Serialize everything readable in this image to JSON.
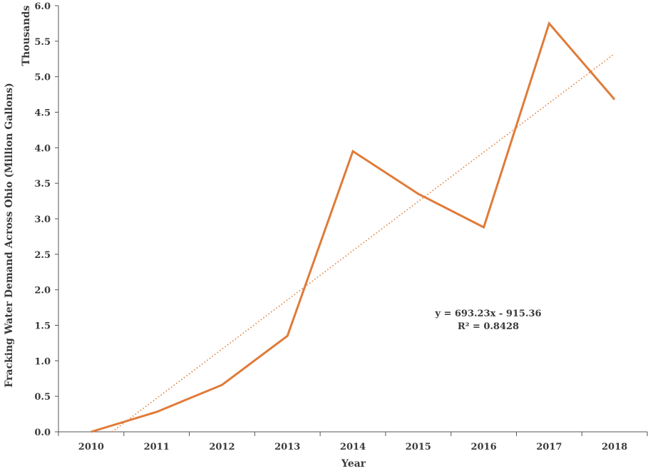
{
  "chart_data": {
    "type": "line",
    "title": "",
    "xlabel": "Year",
    "ylabel": "Fracking Water Demand Across Ohio (Million Gallons)",
    "unit_label": "Thousands",
    "categories": [
      "2010",
      "2011",
      "2012",
      "2013",
      "2014",
      "2015",
      "2016",
      "2017",
      "2018"
    ],
    "series": [
      {
        "values": [
          0.0,
          0.28,
          0.66,
          1.35,
          3.95,
          3.35,
          2.88,
          5.75,
          4.68
        ],
        "color": "#e07b39"
      }
    ],
    "trendline": {
      "type": "linear",
      "slope": 693.23,
      "intercept": -915.36,
      "color": "#e07b39",
      "style": "dotted",
      "equation": "y = 693.23x - 915.36",
      "r_squared": "R² = 0.8428"
    },
    "ylim": [
      0.0,
      6.0
    ],
    "yticks": [
      "0.0",
      "0.5",
      "1.0",
      "1.5",
      "2.0",
      "2.5",
      "3.0",
      "3.5",
      "4.0",
      "4.5",
      "5.0",
      "5.5",
      "6.0"
    ],
    "grid": false,
    "legend": "none"
  }
}
